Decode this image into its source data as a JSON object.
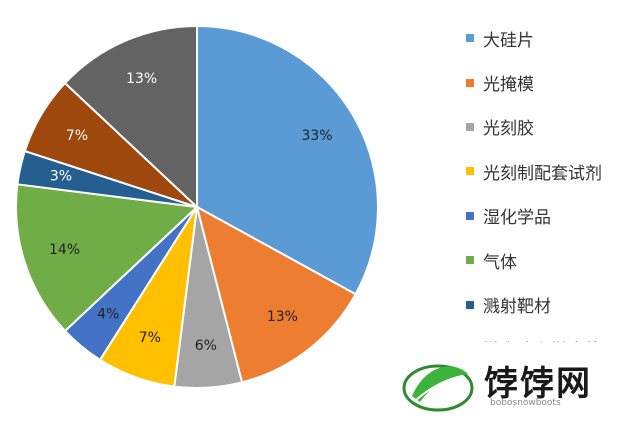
{
  "chart_data": {
    "type": "pie",
    "title": "",
    "start_angle_deg": 0,
    "direction": "clockwise",
    "slices": [
      {
        "label": "大硅片",
        "value": 33,
        "display": "33%",
        "color": "#5B9BD5"
      },
      {
        "label": "光掩模",
        "value": 13,
        "display": "13%",
        "color": "#ED7D31"
      },
      {
        "label": "光刻胶",
        "value": 6,
        "display": "6%",
        "color": "#A5A5A5"
      },
      {
        "label": "光刻制配套试剂",
        "value": 7,
        "display": "7%",
        "color": "#FFC000"
      },
      {
        "label": "湿化学品",
        "value": 4,
        "display": "4%",
        "color": "#4472C4"
      },
      {
        "label": "气体",
        "value": 14,
        "display": "14%",
        "color": "#70AD47"
      },
      {
        "label": "溅射靶材",
        "value": 3,
        "display": "3%",
        "color": "#255E91"
      },
      {
        "label": "抛光液和抛光垫",
        "value": 7,
        "display": "7%",
        "color": "#9E480E"
      },
      {
        "label": "",
        "value": 13,
        "display": "13%",
        "color": "#636363"
      }
    ],
    "legend_position": "right"
  },
  "watermark": {
    "text": "饽饽网",
    "subtext": "bobosnowboots",
    "logo_color": "#3cb43c"
  }
}
